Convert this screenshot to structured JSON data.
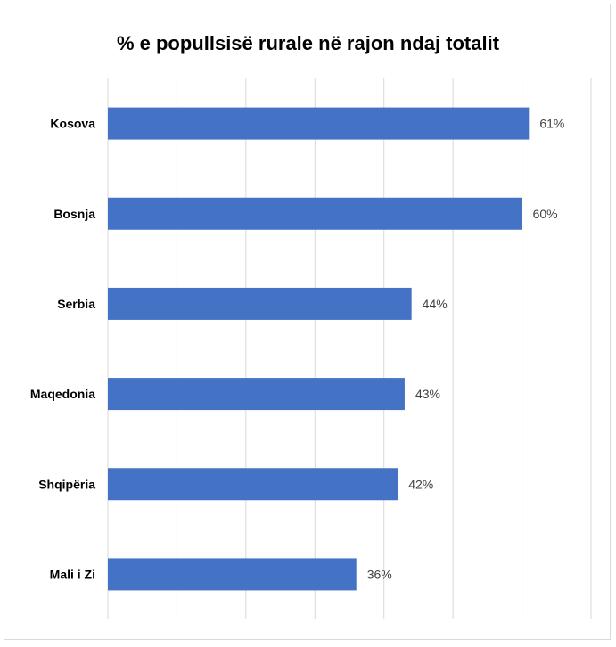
{
  "chart_data": {
    "type": "bar",
    "orientation": "horizontal",
    "title": "% e popullsisë rurale në rajon ndaj totalit",
    "categories": [
      "Kosova",
      "Bosnja",
      "Serbia",
      "Maqedonia",
      "Shqipëria",
      "Mali i Zi"
    ],
    "values": [
      61,
      60,
      44,
      43,
      42,
      36
    ],
    "data_labels": [
      "61%",
      "60%",
      "44%",
      "43%",
      "42%",
      "36%"
    ],
    "xlim": [
      0,
      70
    ],
    "grid": true,
    "legend": "none",
    "bar_color": "#4472C4",
    "grid_color": "#d9d9d9"
  }
}
